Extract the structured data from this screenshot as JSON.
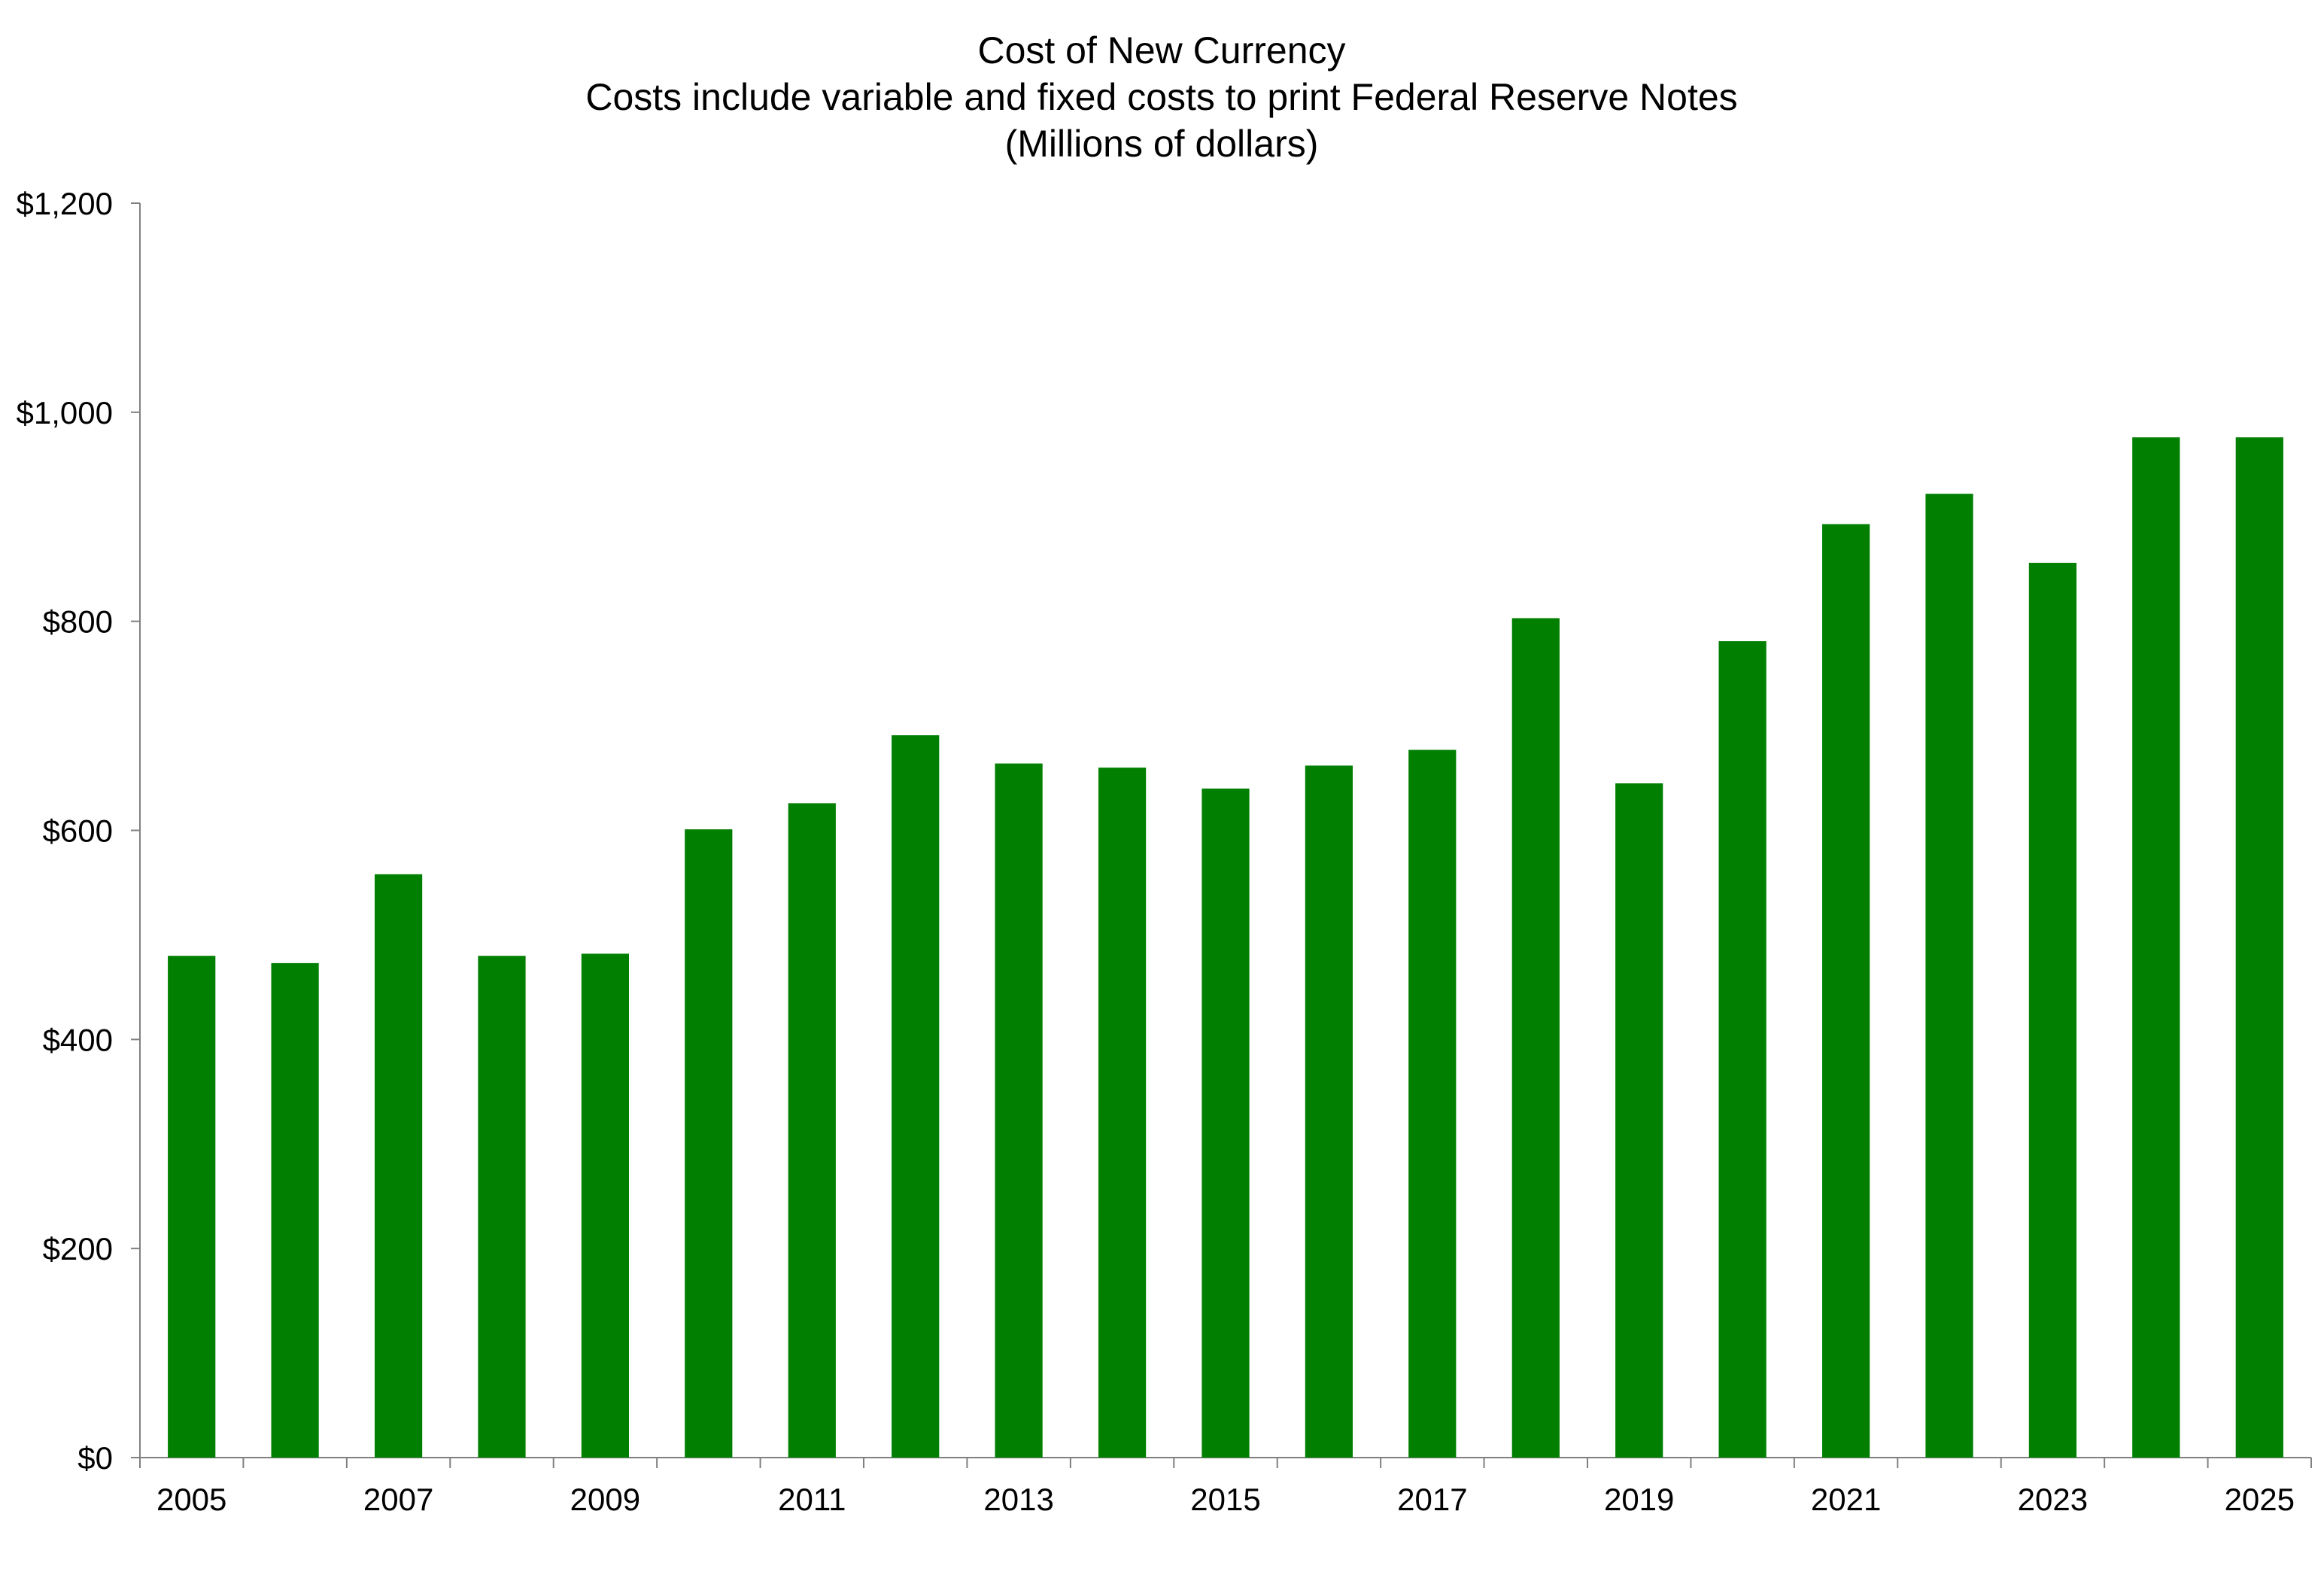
{
  "chart_data": {
    "type": "bar",
    "title": "Cost of New Currency",
    "subtitle": "Costs include variable and fixed costs to print Federal Reserve Notes",
    "subtitle2": "(Millions of dollars)",
    "xlabel": "",
    "ylabel": "",
    "ylim": [
      0,
      1200
    ],
    "yticks": [
      0,
      200,
      400,
      600,
      800,
      1000,
      1200
    ],
    "ytick_labels": [
      "$0",
      "$200",
      "$400",
      "$600",
      "$800",
      "$1,000",
      "$1,200"
    ],
    "categories": [
      "2005",
      "2006",
      "2007",
      "2008",
      "2009",
      "2010",
      "2011",
      "2012",
      "2013",
      "2014",
      "2015",
      "2016",
      "2017",
      "2018",
      "2019",
      "2020",
      "2021",
      "2022",
      "2023",
      "2024",
      "2025"
    ],
    "xtick_labels_shown": [
      "2005",
      "2007",
      "2009",
      "2011",
      "2013",
      "2015",
      "2017",
      "2019",
      "2021",
      "2023",
      "2025"
    ],
    "values": [
      480,
      473,
      558,
      480,
      482,
      601,
      626,
      691,
      664,
      660,
      640,
      662,
      677,
      803,
      645,
      781,
      893,
      922,
      856,
      976,
      976
    ],
    "grid": false,
    "legend": "none",
    "bar_color": "#007F00"
  }
}
